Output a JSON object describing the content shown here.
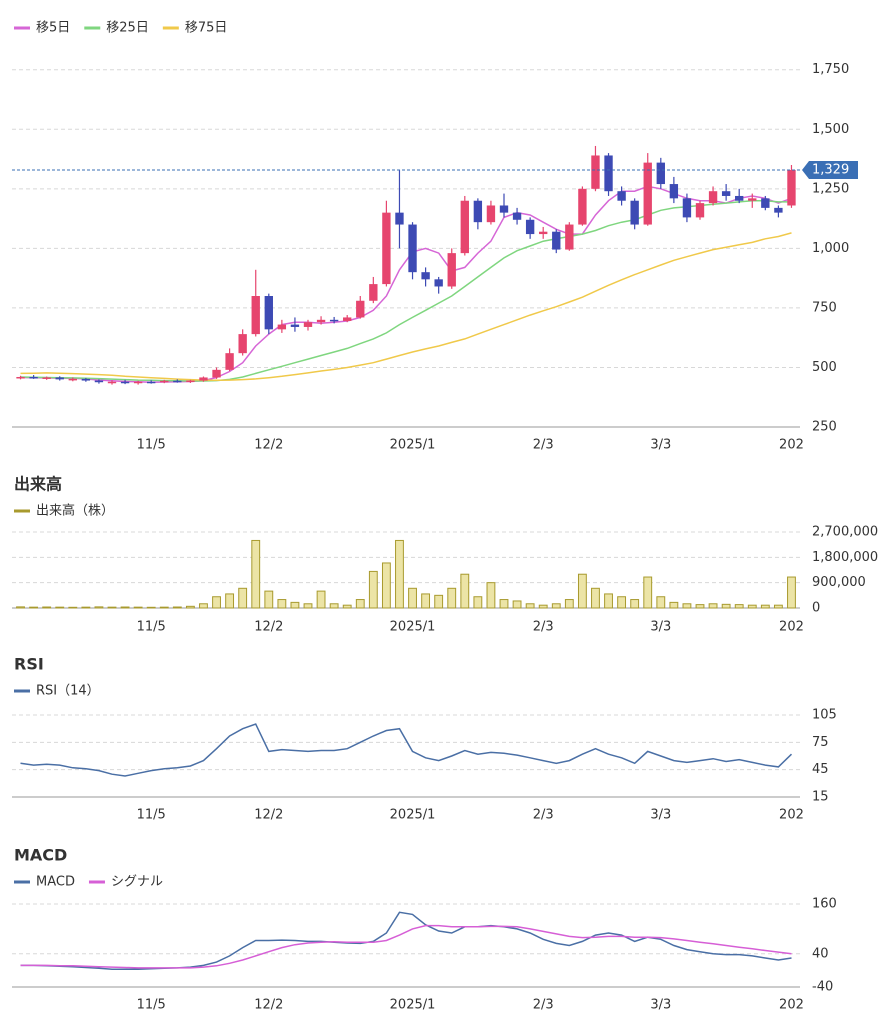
{
  "chart_data": [
    {
      "type": "candlestick",
      "categories": [
        null,
        null,
        null,
        null,
        null,
        null,
        null,
        null,
        null,
        null,
        "11/5",
        null,
        null,
        null,
        null,
        null,
        null,
        null,
        null,
        "12/2",
        null,
        null,
        null,
        null,
        null,
        null,
        null,
        null,
        null,
        null,
        "2025/1",
        null,
        null,
        null,
        null,
        null,
        null,
        null,
        null,
        null,
        "2/3",
        null,
        null,
        null,
        null,
        null,
        null,
        null,
        null,
        "3/3",
        null,
        null,
        null,
        null,
        null,
        null,
        null,
        null,
        null,
        "202"
      ],
      "ohlc": [
        [
          455,
          465,
          450,
          460
        ],
        [
          460,
          468,
          452,
          455
        ],
        [
          455,
          462,
          448,
          458
        ],
        [
          458,
          463,
          445,
          450
        ],
        [
          450,
          458,
          442,
          452
        ],
        [
          452,
          456,
          440,
          445
        ],
        [
          445,
          450,
          432,
          438
        ],
        [
          438,
          446,
          428,
          440
        ],
        [
          440,
          448,
          430,
          435
        ],
        [
          435,
          444,
          428,
          440
        ],
        [
          440,
          446,
          432,
          438
        ],
        [
          438,
          448,
          434,
          444
        ],
        [
          444,
          450,
          436,
          440
        ],
        [
          440,
          448,
          435,
          445
        ],
        [
          445,
          462,
          440,
          458
        ],
        [
          458,
          500,
          452,
          490
        ],
        [
          490,
          580,
          485,
          560
        ],
        [
          560,
          660,
          550,
          640
        ],
        [
          640,
          910,
          630,
          800
        ],
        [
          800,
          810,
          640,
          660
        ],
        [
          660,
          700,
          645,
          680
        ],
        [
          680,
          710,
          650,
          670
        ],
        [
          670,
          700,
          655,
          690
        ],
        [
          690,
          715,
          680,
          700
        ],
        [
          700,
          712,
          685,
          695
        ],
        [
          695,
          720,
          690,
          710
        ],
        [
          710,
          800,
          705,
          780
        ],
        [
          780,
          880,
          770,
          850
        ],
        [
          850,
          1200,
          840,
          1150
        ],
        [
          1150,
          1330,
          1000,
          1100
        ],
        [
          1100,
          1110,
          870,
          900
        ],
        [
          900,
          920,
          840,
          870
        ],
        [
          870,
          880,
          810,
          840
        ],
        [
          840,
          1000,
          830,
          980
        ],
        [
          980,
          1220,
          970,
          1200
        ],
        [
          1200,
          1210,
          1080,
          1110
        ],
        [
          1110,
          1200,
          1100,
          1180
        ],
        [
          1180,
          1230,
          1130,
          1150
        ],
        [
          1150,
          1170,
          1100,
          1120
        ],
        [
          1120,
          1130,
          1040,
          1060
        ],
        [
          1060,
          1090,
          1040,
          1070
        ],
        [
          1070,
          1080,
          980,
          995
        ],
        [
          995,
          1110,
          990,
          1100
        ],
        [
          1100,
          1260,
          1095,
          1250
        ],
        [
          1250,
          1430,
          1240,
          1390
        ],
        [
          1390,
          1400,
          1220,
          1240
        ],
        [
          1240,
          1260,
          1180,
          1200
        ],
        [
          1200,
          1210,
          1080,
          1100
        ],
        [
          1100,
          1400,
          1095,
          1360
        ],
        [
          1360,
          1380,
          1250,
          1270
        ],
        [
          1270,
          1300,
          1190,
          1210
        ],
        [
          1210,
          1230,
          1110,
          1130
        ],
        [
          1130,
          1200,
          1120,
          1190
        ],
        [
          1190,
          1260,
          1180,
          1240
        ],
        [
          1240,
          1270,
          1200,
          1220
        ],
        [
          1220,
          1250,
          1190,
          1200
        ],
        [
          1200,
          1230,
          1170,
          1210
        ],
        [
          1210,
          1220,
          1160,
          1170
        ],
        [
          1170,
          1180,
          1130,
          1150
        ],
        [
          1180,
          1350,
          1170,
          1329
        ]
      ],
      "up_color": "#e6456e",
      "down_color": "#3d4ab4",
      "series": [
        {
          "name": "移5日",
          "color": "#d666d6",
          "values": [
            458,
            457,
            456,
            455,
            454,
            452,
            447,
            444,
            441,
            440,
            438,
            439,
            440,
            441,
            445,
            458,
            483,
            520,
            590,
            640,
            680,
            690,
            690,
            686,
            690,
            695,
            710,
            740,
            800,
            910,
            985,
            1000,
            980,
            905,
            920,
            980,
            1030,
            1130,
            1150,
            1140,
            1110,
            1080,
            1060,
            1060,
            1140,
            1200,
            1240,
            1240,
            1260,
            1250,
            1230,
            1210,
            1200,
            1200,
            1190,
            1210,
            1220,
            1210,
            1190,
            1210
          ]
        },
        {
          "name": "移25日",
          "color": "#7fd67f",
          "values": [
            460,
            459,
            458,
            457,
            456,
            455,
            453,
            451,
            449,
            447,
            446,
            445,
            444,
            443,
            443,
            445,
            450,
            460,
            475,
            490,
            505,
            520,
            535,
            550,
            565,
            580,
            600,
            620,
            645,
            680,
            710,
            740,
            770,
            800,
            840,
            880,
            920,
            960,
            990,
            1010,
            1030,
            1040,
            1050,
            1060,
            1075,
            1095,
            1110,
            1120,
            1140,
            1160,
            1170,
            1175,
            1180,
            1185,
            1190,
            1195,
            1200,
            1200,
            1195,
            1195
          ]
        },
        {
          "name": "移75日",
          "color": "#f0c94a",
          "values": [
            475,
            476,
            477,
            476,
            474,
            472,
            470,
            467,
            463,
            460,
            457,
            454,
            451,
            449,
            447,
            446,
            447,
            449,
            452,
            457,
            463,
            470,
            477,
            485,
            492,
            500,
            510,
            520,
            535,
            550,
            565,
            578,
            590,
            605,
            620,
            640,
            660,
            680,
            700,
            720,
            738,
            755,
            775,
            795,
            820,
            845,
            868,
            890,
            910,
            930,
            950,
            965,
            980,
            995,
            1005,
            1015,
            1025,
            1040,
            1050,
            1065
          ]
        }
      ],
      "last_price": {
        "value": 1329,
        "label": "1,329"
      },
      "ylim": [
        250,
        1900
      ],
      "yticks": [
        250,
        500,
        750,
        {
          "value": 1000,
          "label": "1,000"
        },
        {
          "value": 1250,
          "label": "1,250"
        },
        {
          "value": 1500,
          "label": "1,500"
        },
        {
          "value": 1750,
          "label": "1,750"
        }
      ],
      "grid": true
    },
    {
      "type": "bar",
      "title": "出来高",
      "categories": [
        null,
        null,
        null,
        null,
        null,
        null,
        null,
        null,
        null,
        null,
        "11/5",
        null,
        null,
        null,
        null,
        null,
        null,
        null,
        null,
        "12/2",
        null,
        null,
        null,
        null,
        null,
        null,
        null,
        null,
        null,
        null,
        "2025/1",
        null,
        null,
        null,
        null,
        null,
        null,
        null,
        null,
        null,
        "2/3",
        null,
        null,
        null,
        null,
        null,
        null,
        null,
        null,
        "3/3",
        null,
        null,
        null,
        null,
        null,
        null,
        null,
        null,
        null,
        "202"
      ],
      "series": [
        {
          "name": "出来高（株）",
          "color": "#a89a2e",
          "values": [
            40000,
            30000,
            35000,
            30000,
            25000,
            30000,
            40000,
            30000,
            35000,
            30000,
            25000,
            30000,
            35000,
            60000,
            150000,
            400000,
            500000,
            700000,
            2400000,
            600000,
            300000,
            200000,
            150000,
            600000,
            150000,
            100000,
            300000,
            1300000,
            1600000,
            2400000,
            700000,
            500000,
            450000,
            700000,
            1200000,
            400000,
            900000,
            300000,
            250000,
            150000,
            100000,
            150000,
            300000,
            1200000,
            700000,
            500000,
            400000,
            300000,
            1100000,
            400000,
            200000,
            150000,
            120000,
            150000,
            130000,
            120000,
            100000,
            100000,
            100000,
            1100000
          ]
        }
      ],
      "ylim": [
        0,
        2700000
      ],
      "yticks": [
        0,
        {
          "value": 900000,
          "label": "900,000"
        },
        {
          "value": 1800000,
          "label": "1,800,000"
        },
        {
          "value": 2700000,
          "label": "2,700,000"
        }
      ],
      "grid": true
    },
    {
      "type": "line",
      "title": "RSI",
      "categories": [
        null,
        null,
        null,
        null,
        null,
        null,
        null,
        null,
        null,
        null,
        "11/5",
        null,
        null,
        null,
        null,
        null,
        null,
        null,
        null,
        "12/2",
        null,
        null,
        null,
        null,
        null,
        null,
        null,
        null,
        null,
        null,
        "2025/1",
        null,
        null,
        null,
        null,
        null,
        null,
        null,
        null,
        null,
        "2/3",
        null,
        null,
        null,
        null,
        null,
        null,
        null,
        null,
        "3/3",
        null,
        null,
        null,
        null,
        null,
        null,
        null,
        null,
        null,
        "202"
      ],
      "series": [
        {
          "name": "RSI（14）",
          "color": "#4a6fa5",
          "values": [
            52,
            50,
            51,
            50,
            47,
            46,
            44,
            40,
            38,
            41,
            44,
            46,
            47,
            49,
            55,
            68,
            82,
            90,
            95,
            65,
            67,
            66,
            65,
            66,
            66,
            68,
            75,
            82,
            88,
            90,
            65,
            58,
            55,
            60,
            66,
            62,
            64,
            63,
            61,
            58,
            55,
            52,
            55,
            62,
            68,
            62,
            58,
            52,
            65,
            60,
            55,
            53,
            55,
            57,
            54,
            56,
            53,
            50,
            48,
            62
          ]
        }
      ],
      "ylim": [
        15,
        105
      ],
      "yticks": [
        15,
        45,
        75,
        105
      ],
      "grid": true
    },
    {
      "type": "line",
      "title": "MACD",
      "categories": [
        null,
        null,
        null,
        null,
        null,
        null,
        null,
        null,
        null,
        null,
        "11/5",
        null,
        null,
        null,
        null,
        null,
        null,
        null,
        null,
        "12/2",
        null,
        null,
        null,
        null,
        null,
        null,
        null,
        null,
        null,
        null,
        "2025/1",
        null,
        null,
        null,
        null,
        null,
        null,
        null,
        null,
        null,
        "2/3",
        null,
        null,
        null,
        null,
        null,
        null,
        null,
        null,
        "3/3",
        null,
        null,
        null,
        null,
        null,
        null,
        null,
        null,
        null,
        "202"
      ],
      "series": [
        {
          "name": "MACD",
          "color": "#4a6fa5",
          "values": [
            12,
            12,
            11,
            10,
            9,
            7,
            5,
            3,
            3,
            3,
            4,
            5,
            6,
            8,
            12,
            20,
            35,
            55,
            72,
            72,
            73,
            72,
            70,
            70,
            68,
            66,
            65,
            70,
            90,
            140,
            135,
            110,
            95,
            90,
            105,
            105,
            108,
            105,
            100,
            90,
            75,
            65,
            60,
            70,
            85,
            90,
            85,
            70,
            80,
            75,
            60,
            50,
            45,
            40,
            38,
            38,
            35,
            30,
            25,
            30
          ]
        },
        {
          "name": "シグナル",
          "color": "#d65fd6",
          "values": [
            12,
            12,
            12,
            11,
            11,
            10,
            9,
            8,
            7,
            6,
            6,
            6,
            6,
            6,
            8,
            11,
            17,
            25,
            35,
            45,
            55,
            62,
            66,
            68,
            69,
            68,
            68,
            68,
            72,
            85,
            100,
            108,
            108,
            105,
            105,
            105,
            106,
            106,
            105,
            100,
            94,
            88,
            82,
            79,
            80,
            82,
            82,
            80,
            80,
            79,
            76,
            72,
            68,
            64,
            60,
            56,
            52,
            48,
            44,
            40
          ]
        }
      ],
      "ylim": [
        -40,
        160
      ],
      "yticks": [
        -40,
        40,
        160
      ],
      "grid": true
    }
  ]
}
